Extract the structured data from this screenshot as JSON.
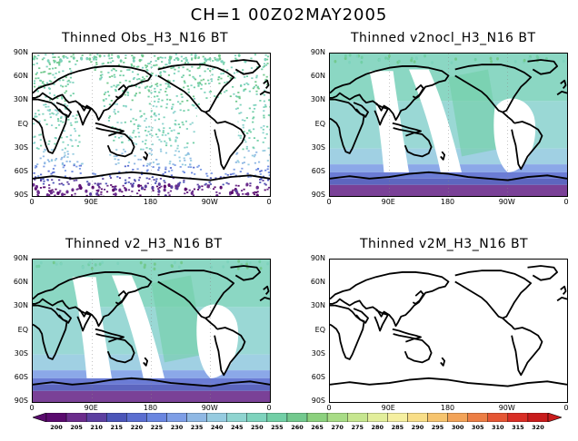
{
  "header": {
    "title": "CH=1    00Z02MAY2005"
  },
  "panels": [
    {
      "title": "Thinned Obs_H3_N16 BT",
      "mode": "obs"
    },
    {
      "title": "Thinned v2nocl_H3_N16 BT",
      "mode": "model"
    },
    {
      "title": "Thinned v2_H3_N16 BT",
      "mode": "model"
    },
    {
      "title": "Thinned v2M_H3_N16 BT",
      "mode": "empty"
    }
  ],
  "lat_ticks": [
    "90N",
    "60N",
    "30N",
    "EQ",
    "30S",
    "60S",
    "90S"
  ],
  "lon_ticks": [
    "0",
    "90E",
    "180",
    "90W",
    "0"
  ],
  "colorbar": {
    "labels": [
      "200",
      "205",
      "210",
      "215",
      "220",
      "225",
      "230",
      "235",
      "240",
      "245",
      "250",
      "255",
      "260",
      "265",
      "270",
      "275",
      "280",
      "285",
      "290",
      "295",
      "300",
      "305",
      "310",
      "315",
      "320"
    ],
    "colors": [
      "#5a0a6e",
      "#6b2c8c",
      "#5c3fa0",
      "#4b55b8",
      "#5b6ed0",
      "#6a86e0",
      "#7e9ee6",
      "#8fb8e4",
      "#96cbe0",
      "#8fd4d0",
      "#7ed3bd",
      "#72cfa6",
      "#73c98e",
      "#8cd17e",
      "#a8dc86",
      "#c6e68f",
      "#e2ee9b",
      "#f5efa0",
      "#f8de88",
      "#f6c46e",
      "#f2a358",
      "#ec7e45",
      "#e55634",
      "#d92e25",
      "#c81b1b"
    ]
  }
}
